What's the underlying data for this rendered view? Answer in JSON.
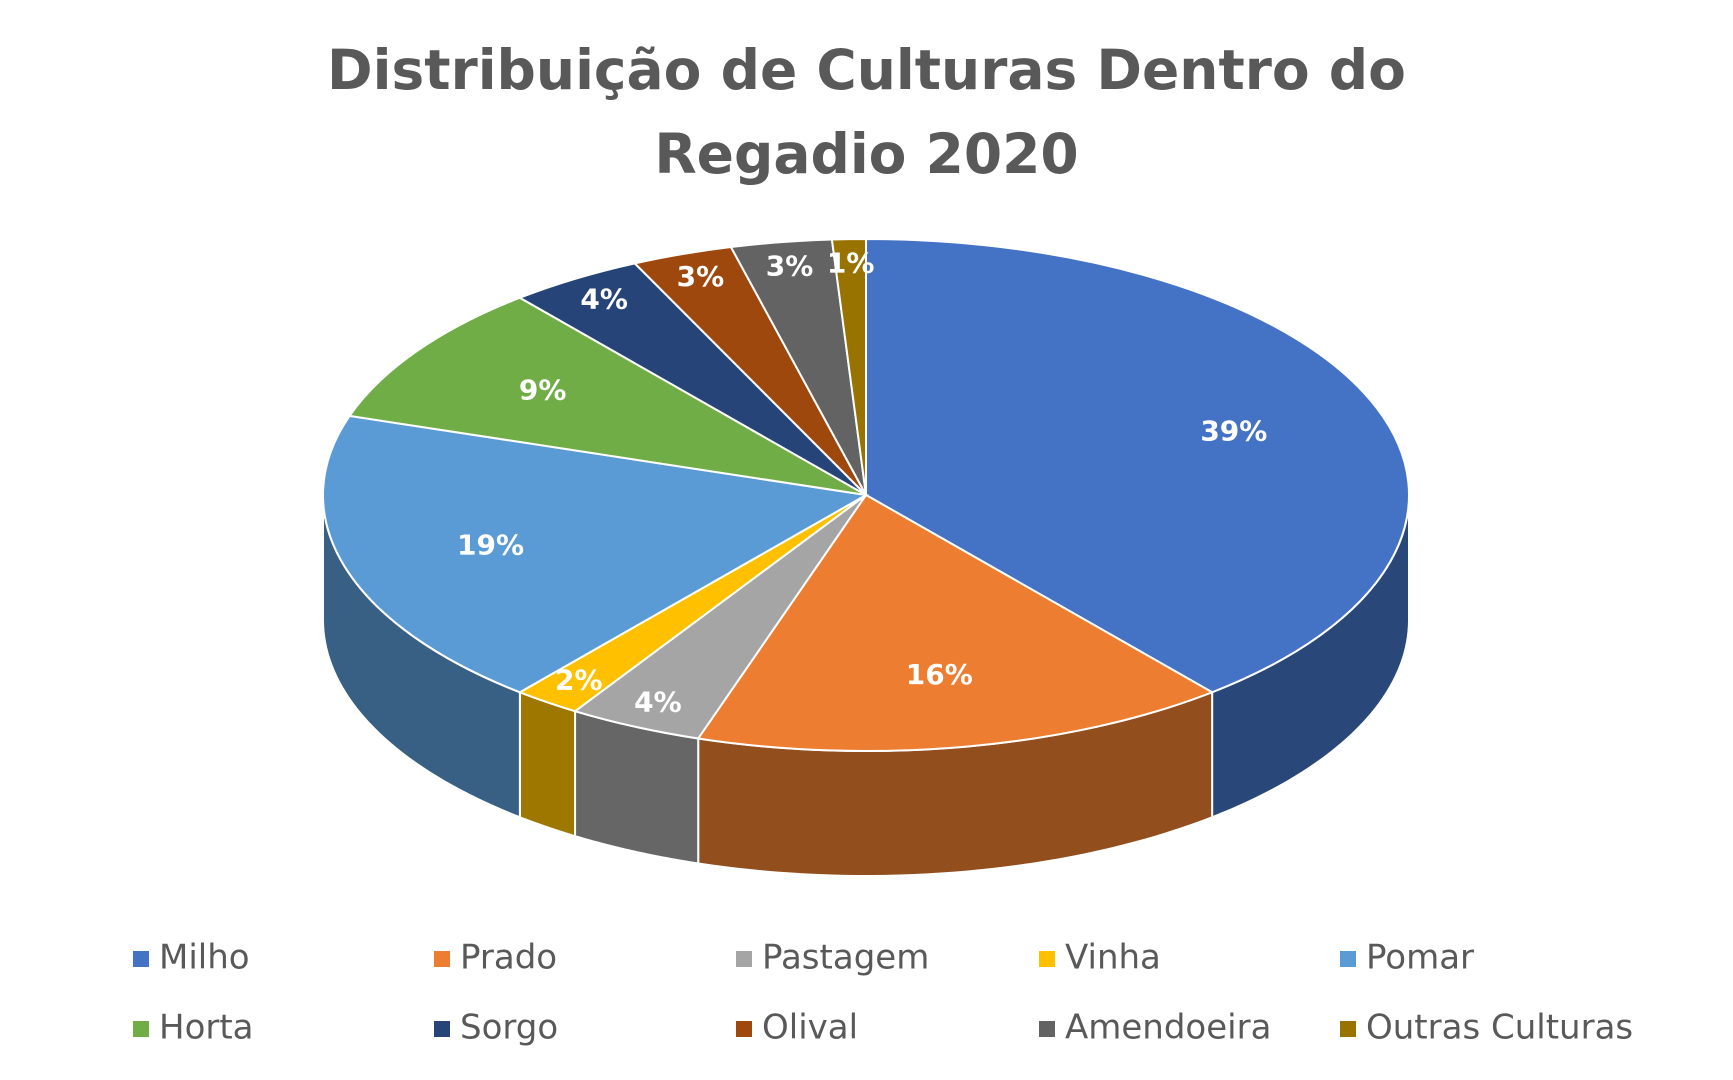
{
  "chart_data": {
    "type": "pie",
    "title": "Distribuição de Culturas Dentro do Regadio 2020",
    "categories": [
      "Milho",
      "Prado",
      "Pastagem",
      "Vinha",
      "Pomar",
      "Horta",
      "Sorgo",
      "Olival",
      "Amendoeira",
      "Outras Culturas"
    ],
    "values": [
      39,
      16,
      4,
      2,
      19,
      9,
      4,
      3,
      3,
      1
    ],
    "value_labels": [
      "39%",
      "16%",
      "4%",
      "2%",
      "19%",
      "9%",
      "4%",
      "3%",
      "3%",
      "1%"
    ],
    "colors": [
      "#4472c4",
      "#ed7d31",
      "#a5a5a5",
      "#ffc000",
      "#5b9bd5",
      "#70ad47",
      "#264478",
      "#9e480e",
      "#636363",
      "#997300"
    ],
    "legend": "bottom"
  }
}
